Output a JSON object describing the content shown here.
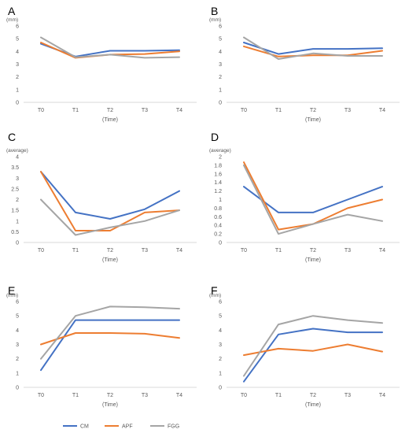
{
  "colors": {
    "CM": "#4472C4",
    "APF": "#ED7D31",
    "FGG": "#A5A5A5",
    "grid": "#d9d9d9",
    "text": "#595959"
  },
  "legend": {
    "items": [
      "CM",
      "APF",
      "FGG"
    ],
    "placement": "bottom-center"
  },
  "chart_data": [
    {
      "type": "line",
      "panel_label": "A",
      "ylabel": "(mm)",
      "xlabel": "(Time)",
      "categories": [
        "T0",
        "T1",
        "T2",
        "T3",
        "T4"
      ],
      "ylim": [
        0,
        6
      ],
      "ystep": 1,
      "grid": false,
      "series": [
        {
          "name": "CM",
          "values": [
            4.6,
            3.6,
            4.05,
            4.05,
            4.1
          ]
        },
        {
          "name": "APF",
          "values": [
            4.7,
            3.5,
            3.75,
            3.8,
            4.0
          ]
        },
        {
          "name": "FGG",
          "values": [
            5.1,
            3.55,
            3.75,
            3.5,
            3.55
          ]
        }
      ]
    },
    {
      "type": "line",
      "panel_label": "B",
      "ylabel": "(mm)",
      "xlabel": "(Time)",
      "categories": [
        "T0",
        "T1",
        "T2",
        "T3",
        "T4"
      ],
      "ylim": [
        0,
        6
      ],
      "ystep": 1,
      "grid": false,
      "series": [
        {
          "name": "CM",
          "values": [
            4.7,
            3.8,
            4.2,
            4.2,
            4.25
          ]
        },
        {
          "name": "APF",
          "values": [
            4.4,
            3.6,
            3.7,
            3.7,
            4.05
          ]
        },
        {
          "name": "FGG",
          "values": [
            5.1,
            3.4,
            3.85,
            3.65,
            3.65
          ]
        }
      ]
    },
    {
      "type": "line",
      "panel_label": "C",
      "ylabel": "(average)",
      "xlabel": "(Time)",
      "categories": [
        "T0",
        "T1",
        "T2",
        "T3",
        "T4"
      ],
      "ylim": [
        0,
        4
      ],
      "ystep": 0.5,
      "grid": false,
      "series": [
        {
          "name": "CM",
          "values": [
            3.3,
            1.4,
            1.1,
            1.55,
            2.4
          ]
        },
        {
          "name": "APF",
          "values": [
            3.3,
            0.55,
            0.55,
            1.4,
            1.5
          ]
        },
        {
          "name": "FGG",
          "values": [
            2.0,
            0.35,
            0.7,
            1.0,
            1.5
          ]
        }
      ]
    },
    {
      "type": "line",
      "panel_label": "D",
      "ylabel": "(average)",
      "xlabel": "(Time)",
      "categories": [
        "T0",
        "T1",
        "T2",
        "T3",
        "T4"
      ],
      "ylim": [
        0,
        2
      ],
      "ystep": 0.2,
      "grid": false,
      "series": [
        {
          "name": "CM",
          "values": [
            1.3,
            0.7,
            0.7,
            1.0,
            1.3
          ]
        },
        {
          "name": "APF",
          "values": [
            1.87,
            0.3,
            0.43,
            0.8,
            1.0
          ]
        },
        {
          "name": "FGG",
          "values": [
            1.8,
            0.2,
            0.43,
            0.65,
            0.5
          ]
        }
      ]
    },
    {
      "type": "line",
      "panel_label": "E",
      "ylabel": "(mm)",
      "xlabel": "(Time)",
      "categories": [
        "T0",
        "T1",
        "T2",
        "T3",
        "T4"
      ],
      "ylim": [
        0,
        6
      ],
      "ystep": 1,
      "grid": false,
      "series": [
        {
          "name": "CM",
          "values": [
            1.2,
            4.7,
            4.7,
            4.7,
            4.7
          ]
        },
        {
          "name": "APF",
          "values": [
            3.0,
            3.8,
            3.8,
            3.75,
            3.45
          ]
        },
        {
          "name": "FGG",
          "values": [
            2.0,
            5.0,
            5.65,
            5.6,
            5.5
          ]
        }
      ]
    },
    {
      "type": "line",
      "panel_label": "F",
      "ylabel": "(mm)",
      "xlabel": "(Time)",
      "categories": [
        "T0",
        "T1",
        "T2",
        "T3",
        "T4"
      ],
      "ylim": [
        0,
        6
      ],
      "ystep": 1,
      "grid": false,
      "series": [
        {
          "name": "CM",
          "values": [
            0.4,
            3.7,
            4.1,
            3.85,
            3.85
          ]
        },
        {
          "name": "APF",
          "values": [
            2.25,
            2.7,
            2.55,
            3.0,
            2.5
          ]
        },
        {
          "name": "FGG",
          "values": [
            0.8,
            4.4,
            5.0,
            4.7,
            4.5
          ]
        }
      ]
    }
  ]
}
